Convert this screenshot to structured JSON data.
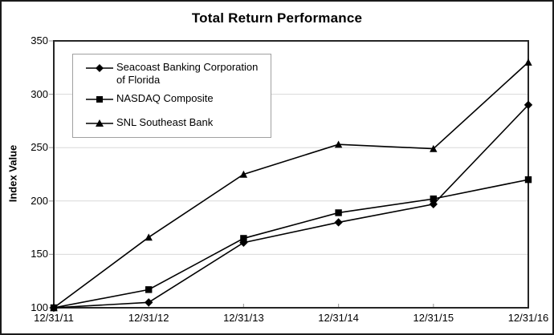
{
  "chart_data": {
    "type": "line",
    "title": "Total Return Performance",
    "ylabel": "Index Value",
    "xlabel": "",
    "categories": [
      "12/31/11",
      "12/31/12",
      "12/31/13",
      "12/31/14",
      "12/31/15",
      "12/31/16"
    ],
    "series": [
      {
        "name": "Seacoast Banking Corporation of Florida",
        "marker": "diamond",
        "values": [
          100,
          105,
          161,
          180,
          197,
          290
        ]
      },
      {
        "name": "NASDAQ Composite",
        "marker": "square",
        "values": [
          100,
          117,
          165,
          189,
          202,
          220
        ]
      },
      {
        "name": "SNL Southeast Bank",
        "marker": "triangle",
        "values": [
          100,
          166,
          225,
          253,
          249,
          330
        ]
      }
    ],
    "ylim": [
      100,
      350
    ],
    "yticks": [
      100,
      150,
      200,
      250,
      300,
      350
    ],
    "grid": true,
    "legend_position": "upper-left",
    "colors": {
      "line": "#000000",
      "marker": "#000000",
      "grid": "#d9d9d9",
      "tick": "#a6a6a6",
      "axis_border": "#262626",
      "legend_border": "#a0a0a0",
      "background": "#ffffff"
    }
  }
}
